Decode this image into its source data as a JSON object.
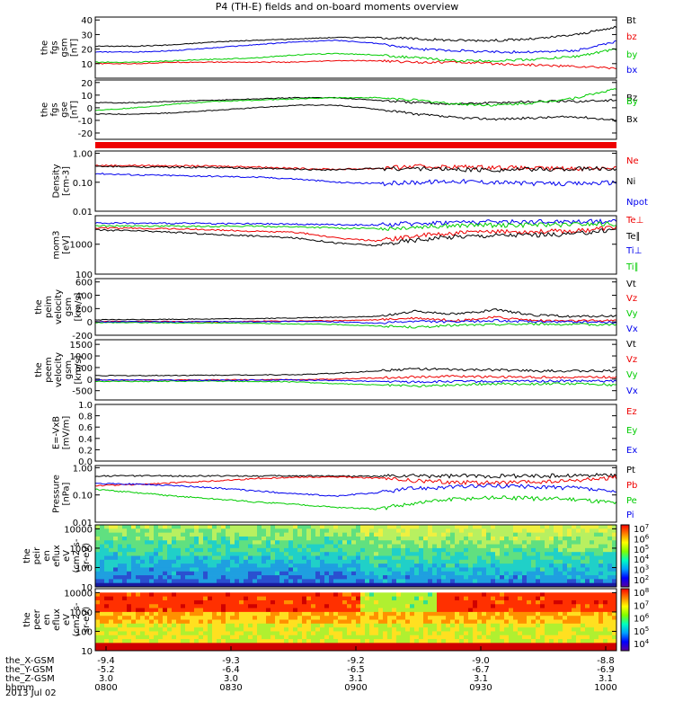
{
  "title": "P4 (TH-E) fields and on-board moments overview",
  "date": "2013 Jul 02",
  "colors": {
    "black": "#000000",
    "red": "#ee0000",
    "green": "#00cc00",
    "blue": "#0000ee"
  },
  "chart_data": [
    {
      "type": "line",
      "ylabel": [
        "the",
        "fgs",
        "gsm",
        "[nT]"
      ],
      "yticks": [
        10,
        20,
        30,
        40
      ],
      "ylim": [
        0,
        42
      ],
      "series": [
        {
          "name": "Bt",
          "color": "#000000",
          "values": [
            22,
            22,
            23,
            25,
            26,
            27,
            28,
            28,
            27,
            26,
            26,
            27,
            30,
            35
          ]
        },
        {
          "name": "bz",
          "color": "#ee0000",
          "values": [
            10,
            10,
            11,
            11,
            11,
            11,
            12,
            12,
            11,
            11,
            10,
            9,
            8,
            7
          ]
        },
        {
          "name": "by",
          "color": "#00cc00",
          "values": [
            11,
            11,
            12,
            13,
            14,
            16,
            17,
            16,
            14,
            12,
            12,
            13,
            15,
            20
          ]
        },
        {
          "name": "bx",
          "color": "#0000ee",
          "values": [
            18,
            18,
            19,
            21,
            23,
            25,
            26,
            24,
            20,
            19,
            18,
            18,
            19,
            25
          ]
        }
      ]
    },
    {
      "type": "line",
      "ylabel": [
        "the",
        "fgs",
        "gse",
        "[nT]"
      ],
      "yticks": [
        -20,
        -10,
        0,
        10,
        20
      ],
      "ylim": [
        -25,
        22
      ],
      "series": [
        {
          "name": "Bz",
          "color": "#000000",
          "values": [
            4,
            4,
            5,
            6,
            7,
            8,
            8,
            6,
            4,
            3,
            4,
            5,
            5,
            6
          ]
        },
        {
          "name": "By",
          "color": "#00cc00",
          "values": [
            -2,
            0,
            3,
            5,
            6,
            7,
            8,
            8,
            6,
            3,
            2,
            4,
            8,
            15
          ]
        },
        {
          "name": "Bx",
          "color": "#000000",
          "values": [
            -5,
            -5,
            -4,
            -2,
            0,
            2,
            2,
            -1,
            -5,
            -8,
            -9,
            -8,
            -7,
            -10
          ]
        }
      ]
    },
    {
      "type": "line",
      "ylabel": [
        "Density",
        "[cm-3]"
      ],
      "yticks": [
        "0.01",
        "0.10",
        "1.00"
      ],
      "yscale": "log",
      "ylim": [
        0.01,
        1.2
      ],
      "series": [
        {
          "name": "Ne",
          "color": "#ee0000",
          "values": [
            0.38,
            0.38,
            0.37,
            0.36,
            0.34,
            0.3,
            0.28,
            0.3,
            0.35,
            0.34,
            0.33,
            0.3,
            0.3,
            0.32
          ]
        },
        {
          "name": "Ni",
          "color": "#000000",
          "values": [
            0.35,
            0.34,
            0.33,
            0.32,
            0.3,
            0.28,
            0.27,
            0.3,
            0.3,
            0.28,
            0.27,
            0.28,
            0.29,
            0.3
          ]
        },
        {
          "name": "Npot",
          "color": "#0000ee",
          "values": [
            0.2,
            0.18,
            0.17,
            0.16,
            0.15,
            0.13,
            0.1,
            0.09,
            0.1,
            0.11,
            0.1,
            0.09,
            0.09,
            0.1
          ]
        }
      ]
    },
    {
      "type": "line",
      "ylabel": [
        "mom3",
        "[eV]"
      ],
      "yticks": [
        "100",
        "1000"
      ],
      "yscale": "log",
      "ylim": [
        100,
        9000
      ],
      "series": [
        {
          "name": "Te⊥",
          "color": "#ee0000",
          "values": [
            3500,
            3400,
            3300,
            3000,
            2700,
            2500,
            1600,
            1300,
            1900,
            2400,
            2600,
            2700,
            2800,
            3800
          ]
        },
        {
          "name": "Te∥",
          "color": "#000000",
          "values": [
            3000,
            2800,
            2500,
            2100,
            1900,
            1600,
            1100,
            900,
            1400,
            1800,
            2000,
            2100,
            2200,
            3200
          ]
        },
        {
          "name": "Ti⊥",
          "color": "#0000ee",
          "values": [
            5200,
            5000,
            5000,
            4900,
            4800,
            4700,
            4500,
            4400,
            5000,
            5500,
            5600,
            5700,
            5800,
            6000
          ]
        },
        {
          "name": "Ti∥",
          "color": "#00cc00",
          "values": [
            4200,
            4100,
            4000,
            4000,
            4000,
            3800,
            3500,
            3300,
            3900,
            4200,
            4400,
            4500,
            4600,
            4800
          ]
        }
      ]
    },
    {
      "type": "line",
      "ylabel": [
        "the",
        "peim",
        "velocity",
        "gsm",
        "[km/s]"
      ],
      "yticks": [
        -200,
        0,
        200,
        400,
        600
      ],
      "ylim": [
        -200,
        650
      ],
      "series": [
        {
          "name": "Vt",
          "color": "#000000",
          "values": [
            30,
            35,
            40,
            45,
            50,
            60,
            70,
            80,
            160,
            120,
            180,
            100,
            80,
            90
          ]
        },
        {
          "name": "Vz",
          "color": "#ee0000",
          "values": [
            5,
            10,
            5,
            0,
            10,
            15,
            20,
            30,
            60,
            20,
            70,
            20,
            15,
            20
          ]
        },
        {
          "name": "Vy",
          "color": "#00cc00",
          "values": [
            -10,
            -10,
            -15,
            -15,
            -20,
            -30,
            -40,
            -60,
            -80,
            -50,
            -40,
            -30,
            -40,
            -40
          ]
        },
        {
          "name": "Vx",
          "color": "#0000ee",
          "values": [
            0,
            5,
            0,
            5,
            0,
            10,
            0,
            -20,
            10,
            0,
            20,
            0,
            0,
            -10
          ]
        }
      ]
    },
    {
      "type": "line",
      "ylabel": [
        "the",
        "peem",
        "velocity",
        "gsm",
        "[km/s]"
      ],
      "yticks": [
        -500,
        0,
        500,
        1000,
        1500
      ],
      "ylim": [
        -900,
        1700
      ],
      "series": [
        {
          "name": "Vt",
          "color": "#000000",
          "values": [
            150,
            150,
            160,
            170,
            180,
            190,
            250,
            350,
            450,
            400,
            400,
            350,
            350,
            350
          ]
        },
        {
          "name": "Vz",
          "color": "#ee0000",
          "values": [
            -50,
            -40,
            -40,
            -30,
            -30,
            -20,
            0,
            50,
            100,
            120,
            100,
            80,
            90,
            80
          ]
        },
        {
          "name": "Vy",
          "color": "#00cc00",
          "values": [
            -100,
            -100,
            -90,
            -90,
            -100,
            -120,
            -200,
            -250,
            -300,
            -250,
            -200,
            -200,
            -200,
            -250
          ]
        },
        {
          "name": "Vx",
          "color": "#0000ee",
          "values": [
            -40,
            -40,
            -50,
            -50,
            -40,
            -40,
            -60,
            -100,
            -120,
            -100,
            -100,
            -80,
            -80,
            -90
          ]
        }
      ]
    },
    {
      "type": "line",
      "ylabel": [
        "E=-VxB",
        "[mV/m]"
      ],
      "yticks": [
        "0.0",
        "0.2",
        "0.4",
        "0.6",
        "0.8",
        "1.0"
      ],
      "ylim": [
        0,
        1
      ],
      "series": [
        {
          "name": "Ez",
          "color": "#ee0000",
          "values": []
        },
        {
          "name": "Ey",
          "color": "#00cc00",
          "values": []
        },
        {
          "name": "Ex",
          "color": "#0000ee",
          "values": []
        }
      ]
    },
    {
      "type": "line",
      "ylabel": [
        "Pressure",
        "[nPa]"
      ],
      "yticks": [
        "0.01",
        "0.10",
        "1.00"
      ],
      "yscale": "log",
      "ylim": [
        0.01,
        1.2
      ],
      "series": [
        {
          "name": "Pt",
          "color": "#000000",
          "values": [
            0.5,
            0.5,
            0.5,
            0.5,
            0.5,
            0.5,
            0.5,
            0.48,
            0.5,
            0.5,
            0.5,
            0.5,
            0.52,
            0.55
          ]
        },
        {
          "name": "Pb",
          "color": "#ee0000",
          "values": [
            0.22,
            0.24,
            0.28,
            0.33,
            0.4,
            0.45,
            0.46,
            0.42,
            0.33,
            0.3,
            0.28,
            0.3,
            0.33,
            0.45
          ]
        },
        {
          "name": "Pe",
          "color": "#00cc00",
          "values": [
            0.16,
            0.12,
            0.09,
            0.07,
            0.055,
            0.045,
            0.035,
            0.03,
            0.05,
            0.07,
            0.08,
            0.075,
            0.07,
            0.05
          ]
        },
        {
          "name": "Pi",
          "color": "#0000ee",
          "values": [
            0.26,
            0.25,
            0.22,
            0.18,
            0.14,
            0.11,
            0.09,
            0.12,
            0.18,
            0.2,
            0.22,
            0.2,
            0.18,
            0.12
          ]
        }
      ]
    },
    {
      "type": "heatmap",
      "ylabel": [
        "the",
        "peir",
        "en",
        "eflux",
        "eV",
        "(cm2-s-",
        "sr-eV)"
      ],
      "yticks": [
        "10",
        "100",
        "1000",
        "10000"
      ],
      "yscale": "log",
      "colorbar_ticks": [
        "10^7",
        "10^6",
        "10^5",
        "10^4",
        "10^3",
        "10^2"
      ]
    },
    {
      "type": "heatmap",
      "ylabel": [
        "the",
        "peer",
        "en",
        "eflux",
        "eV",
        "(cm2-s-",
        "sr-eV)"
      ],
      "yticks": [
        "10",
        "100",
        "1000",
        "10000"
      ],
      "yscale": "log",
      "colorbar_ticks": [
        "10^8",
        "10^7",
        "10^6",
        "10^5",
        "10^4"
      ]
    }
  ],
  "xaxis": {
    "row_labels": [
      "the_X-GSM",
      "the_Y-GSM",
      "the_Z-GSM",
      "hhmm"
    ],
    "ticks": [
      {
        "x": [
          "-9.4",
          "-5.2",
          "3.0",
          "0800"
        ]
      },
      {
        "x": [
          "-9.3",
          "-6.4",
          "3.0",
          "0830"
        ]
      },
      {
        "x": [
          "-9.2",
          "-6.5",
          "3.1",
          "0900"
        ]
      },
      {
        "x": [
          "-9.0",
          "-6.7",
          "3.1",
          "0930"
        ]
      },
      {
        "x": [
          "-8.8",
          "-6.9",
          "3.1",
          "1000"
        ]
      }
    ]
  }
}
